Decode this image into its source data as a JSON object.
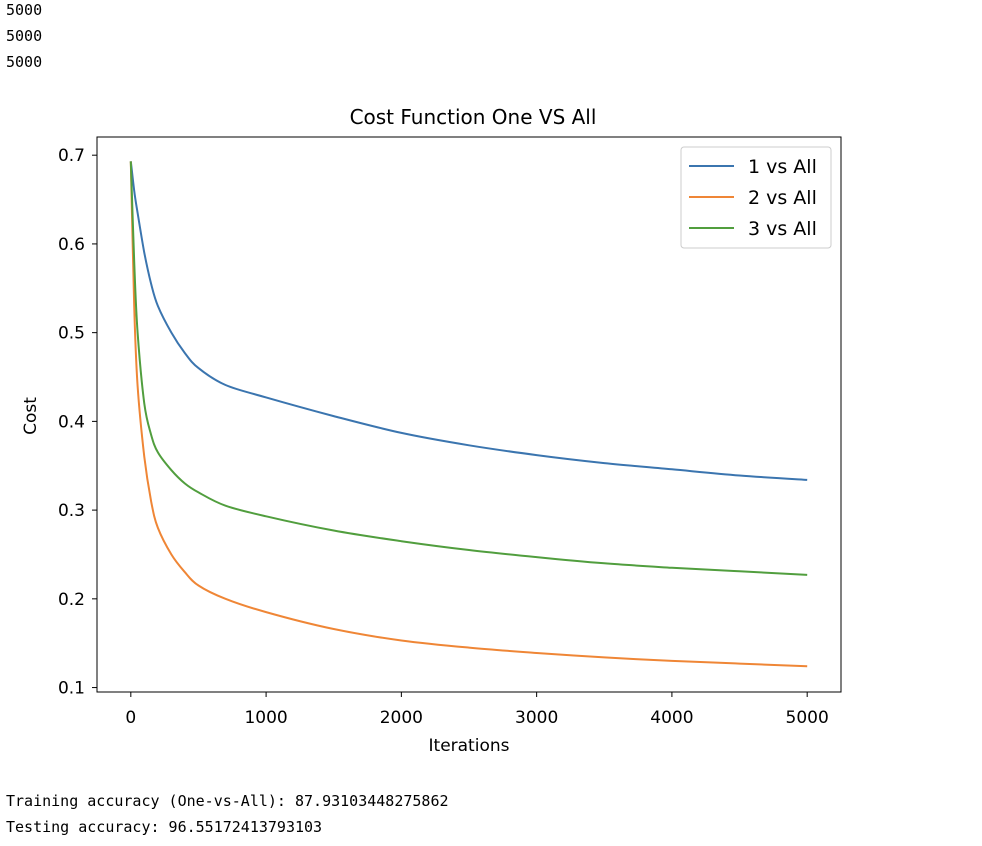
{
  "output_top": [
    "5000",
    "5000",
    "5000"
  ],
  "output_bottom": [
    "Training accuracy (One-vs-All): 87.93103448275862",
    "Testing accuracy: 96.55172413793103"
  ],
  "chart_data": {
    "type": "line",
    "title": "Cost Function One VS All",
    "xlabel": "Iterations",
    "ylabel": "Cost",
    "xlim": [
      -250,
      5250
    ],
    "ylim": [
      0.095,
      0.7205
    ],
    "xticks": [
      0,
      1000,
      2000,
      3000,
      4000,
      5000
    ],
    "yticks": [
      0.1,
      0.2,
      0.3,
      0.4,
      0.5,
      0.6,
      0.7
    ],
    "grid": false,
    "legend_position": "top-right",
    "x": [
      0,
      25,
      50,
      100,
      150,
      200,
      300,
      400,
      500,
      700,
      1000,
      1500,
      2000,
      2500,
      3000,
      3500,
      4000,
      4500,
      5000
    ],
    "series": [
      {
        "name": "1 vs All",
        "color": "#3b75af",
        "values": [
          0.693,
          0.66,
          0.635,
          0.59,
          0.555,
          0.53,
          0.5,
          0.477,
          0.46,
          0.441,
          0.427,
          0.406,
          0.387,
          0.373,
          0.362,
          0.353,
          0.346,
          0.339,
          0.334
        ]
      },
      {
        "name": "2 vs All",
        "color": "#ef8636",
        "values": [
          0.693,
          0.53,
          0.44,
          0.36,
          0.31,
          0.28,
          0.25,
          0.23,
          0.215,
          0.2,
          0.185,
          0.166,
          0.153,
          0.145,
          0.139,
          0.134,
          0.13,
          0.127,
          0.124
        ]
      },
      {
        "name": "3 vs All",
        "color": "#519e3e",
        "values": [
          0.693,
          0.58,
          0.5,
          0.42,
          0.385,
          0.365,
          0.345,
          0.33,
          0.32,
          0.305,
          0.293,
          0.277,
          0.265,
          0.255,
          0.247,
          0.24,
          0.235,
          0.231,
          0.227
        ]
      }
    ]
  }
}
